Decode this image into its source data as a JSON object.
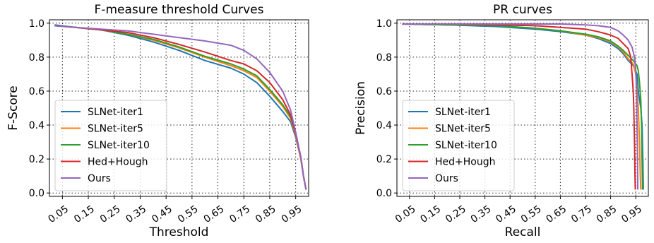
{
  "chart_data": [
    {
      "type": "line",
      "title": "F-measure threshold Curves",
      "xlabel": "Threshold",
      "ylabel": "F-Score",
      "xlim": [
        0.0,
        1.0
      ],
      "ylim": [
        -0.02,
        1.02
      ],
      "xticks": [
        "0.05",
        "0.15",
        "0.25",
        "0.35",
        "0.45",
        "0.55",
        "0.65",
        "0.75",
        "0.85",
        "0.95"
      ],
      "yticks": [
        "0.0",
        "0.2",
        "0.4",
        "0.6",
        "0.8",
        "1.0"
      ],
      "grid": true,
      "legend": "lower-left",
      "series": [
        {
          "name": "SLNet-iter1",
          "color": "#1f77b4",
          "points": [
            [
              0.02,
              0.99
            ],
            [
              0.1,
              0.975
            ],
            [
              0.2,
              0.96
            ],
            [
              0.3,
              0.93
            ],
            [
              0.4,
              0.89
            ],
            [
              0.5,
              0.84
            ],
            [
              0.6,
              0.78
            ],
            [
              0.7,
              0.735
            ],
            [
              0.75,
              0.7
            ],
            [
              0.8,
              0.65
            ],
            [
              0.85,
              0.57
            ],
            [
              0.9,
              0.48
            ],
            [
              0.93,
              0.42
            ],
            [
              0.95,
              0.33
            ],
            [
              0.97,
              0.2
            ],
            [
              0.98,
              0.1
            ],
            [
              0.99,
              0.02
            ]
          ]
        },
        {
          "name": "SLNet-iter5",
          "color": "#ff7f0e",
          "points": [
            [
              0.02,
              0.985
            ],
            [
              0.1,
              0.975
            ],
            [
              0.2,
              0.96
            ],
            [
              0.3,
              0.935
            ],
            [
              0.4,
              0.9
            ],
            [
              0.5,
              0.855
            ],
            [
              0.6,
              0.8
            ],
            [
              0.7,
              0.75
            ],
            [
              0.75,
              0.72
            ],
            [
              0.8,
              0.68
            ],
            [
              0.85,
              0.6
            ],
            [
              0.9,
              0.51
            ],
            [
              0.93,
              0.44
            ],
            [
              0.95,
              0.34
            ],
            [
              0.97,
              0.2
            ],
            [
              0.98,
              0.1
            ],
            [
              0.99,
              0.02
            ]
          ]
        },
        {
          "name": "SLNet-iter10",
          "color": "#2ca02c",
          "points": [
            [
              0.02,
              0.985
            ],
            [
              0.1,
              0.975
            ],
            [
              0.2,
              0.96
            ],
            [
              0.3,
              0.935
            ],
            [
              0.4,
              0.905
            ],
            [
              0.5,
              0.86
            ],
            [
              0.6,
              0.805
            ],
            [
              0.7,
              0.76
            ],
            [
              0.75,
              0.73
            ],
            [
              0.8,
              0.69
            ],
            [
              0.85,
              0.61
            ],
            [
              0.9,
              0.52
            ],
            [
              0.93,
              0.45
            ],
            [
              0.95,
              0.35
            ],
            [
              0.97,
              0.21
            ],
            [
              0.98,
              0.1
            ],
            [
              0.99,
              0.02
            ]
          ]
        },
        {
          "name": "Hed+Hough",
          "color": "#d62728",
          "points": [
            [
              0.02,
              0.985
            ],
            [
              0.1,
              0.975
            ],
            [
              0.2,
              0.96
            ],
            [
              0.3,
              0.945
            ],
            [
              0.4,
              0.915
            ],
            [
              0.5,
              0.875
            ],
            [
              0.6,
              0.83
            ],
            [
              0.7,
              0.78
            ],
            [
              0.75,
              0.76
            ],
            [
              0.8,
              0.72
            ],
            [
              0.85,
              0.65
            ],
            [
              0.9,
              0.55
            ],
            [
              0.93,
              0.46
            ],
            [
              0.95,
              0.35
            ],
            [
              0.97,
              0.21
            ],
            [
              0.98,
              0.1
            ],
            [
              0.99,
              0.02
            ]
          ]
        },
        {
          "name": "Ours",
          "color": "#9467bd",
          "points": [
            [
              0.02,
              0.985
            ],
            [
              0.1,
              0.975
            ],
            [
              0.2,
              0.965
            ],
            [
              0.3,
              0.955
            ],
            [
              0.4,
              0.935
            ],
            [
              0.5,
              0.915
            ],
            [
              0.6,
              0.895
            ],
            [
              0.7,
              0.87
            ],
            [
              0.75,
              0.84
            ],
            [
              0.8,
              0.79
            ],
            [
              0.85,
              0.71
            ],
            [
              0.9,
              0.6
            ],
            [
              0.93,
              0.49
            ],
            [
              0.95,
              0.36
            ],
            [
              0.97,
              0.21
            ],
            [
              0.98,
              0.1
            ],
            [
              0.99,
              0.02
            ]
          ]
        }
      ]
    },
    {
      "type": "line",
      "title": "PR curves",
      "xlabel": "Recall",
      "ylabel": "Precision",
      "xlim": [
        0.0,
        1.0
      ],
      "ylim": [
        -0.02,
        1.02
      ],
      "xticks": [
        "0.05",
        "0.15",
        "0.25",
        "0.35",
        "0.45",
        "0.55",
        "0.65",
        "0.75",
        "0.85",
        "0.95"
      ],
      "yticks": [
        "0.0",
        "0.2",
        "0.4",
        "0.6",
        "0.8",
        "1.0"
      ],
      "grid": true,
      "legend": "lower-left",
      "series": [
        {
          "name": "SLNet-iter1",
          "color": "#1f77b4",
          "points": [
            [
              0.02,
              0.995
            ],
            [
              0.2,
              0.99
            ],
            [
              0.4,
              0.98
            ],
            [
              0.55,
              0.965
            ],
            [
              0.65,
              0.95
            ],
            [
              0.75,
              0.93
            ],
            [
              0.8,
              0.91
            ],
            [
              0.85,
              0.88
            ],
            [
              0.88,
              0.85
            ],
            [
              0.9,
              0.82
            ],
            [
              0.92,
              0.78
            ],
            [
              0.94,
              0.75
            ],
            [
              0.955,
              0.7
            ],
            [
              0.96,
              0.6
            ],
            [
              0.965,
              0.55
            ],
            [
              0.97,
              0.5
            ],
            [
              0.975,
              0.4
            ],
            [
              0.978,
              0.2
            ],
            [
              0.98,
              0.02
            ]
          ]
        },
        {
          "name": "SLNet-iter5",
          "color": "#ff7f0e",
          "points": [
            [
              0.02,
              0.995
            ],
            [
              0.2,
              0.99
            ],
            [
              0.4,
              0.985
            ],
            [
              0.55,
              0.97
            ],
            [
              0.65,
              0.955
            ],
            [
              0.75,
              0.93
            ],
            [
              0.8,
              0.915
            ],
            [
              0.85,
              0.89
            ],
            [
              0.88,
              0.86
            ],
            [
              0.9,
              0.83
            ],
            [
              0.92,
              0.79
            ],
            [
              0.94,
              0.76
            ],
            [
              0.95,
              0.7
            ],
            [
              0.955,
              0.6
            ],
            [
              0.96,
              0.5
            ],
            [
              0.965,
              0.3
            ],
            [
              0.968,
              0.1
            ],
            [
              0.97,
              0.02
            ]
          ]
        },
        {
          "name": "SLNet-iter10",
          "color": "#2ca02c",
          "points": [
            [
              0.02,
              0.995
            ],
            [
              0.2,
              0.99
            ],
            [
              0.4,
              0.985
            ],
            [
              0.55,
              0.97
            ],
            [
              0.65,
              0.955
            ],
            [
              0.75,
              0.935
            ],
            [
              0.8,
              0.92
            ],
            [
              0.85,
              0.895
            ],
            [
              0.88,
              0.865
            ],
            [
              0.9,
              0.84
            ],
            [
              0.92,
              0.81
            ],
            [
              0.94,
              0.78
            ],
            [
              0.955,
              0.75
            ],
            [
              0.96,
              0.72
            ],
            [
              0.965,
              0.65
            ],
            [
              0.97,
              0.55
            ],
            [
              0.973,
              0.4
            ],
            [
              0.975,
              0.2
            ],
            [
              0.977,
              0.02
            ]
          ]
        },
        {
          "name": "Hed+Hough",
          "color": "#d62728",
          "points": [
            [
              0.02,
              0.995
            ],
            [
              0.2,
              0.995
            ],
            [
              0.4,
              0.99
            ],
            [
              0.55,
              0.985
            ],
            [
              0.65,
              0.975
            ],
            [
              0.75,
              0.965
            ],
            [
              0.8,
              0.95
            ],
            [
              0.85,
              0.93
            ],
            [
              0.88,
              0.91
            ],
            [
              0.9,
              0.88
            ],
            [
              0.92,
              0.85
            ],
            [
              0.93,
              0.8
            ],
            [
              0.935,
              0.7
            ],
            [
              0.94,
              0.6
            ],
            [
              0.942,
              0.5
            ],
            [
              0.945,
              0.3
            ],
            [
              0.947,
              0.1
            ],
            [
              0.948,
              0.02
            ]
          ]
        },
        {
          "name": "Ours",
          "color": "#9467bd",
          "points": [
            [
              0.02,
              0.995
            ],
            [
              0.2,
              0.995
            ],
            [
              0.4,
              0.995
            ],
            [
              0.55,
              0.995
            ],
            [
              0.65,
              0.995
            ],
            [
              0.75,
              0.99
            ],
            [
              0.8,
              0.985
            ],
            [
              0.85,
              0.975
            ],
            [
              0.88,
              0.955
            ],
            [
              0.9,
              0.93
            ],
            [
              0.92,
              0.9
            ],
            [
              0.935,
              0.86
            ],
            [
              0.945,
              0.8
            ],
            [
              0.95,
              0.72
            ],
            [
              0.953,
              0.6
            ],
            [
              0.955,
              0.4
            ],
            [
              0.957,
              0.2
            ],
            [
              0.958,
              0.02
            ]
          ]
        }
      ]
    }
  ]
}
